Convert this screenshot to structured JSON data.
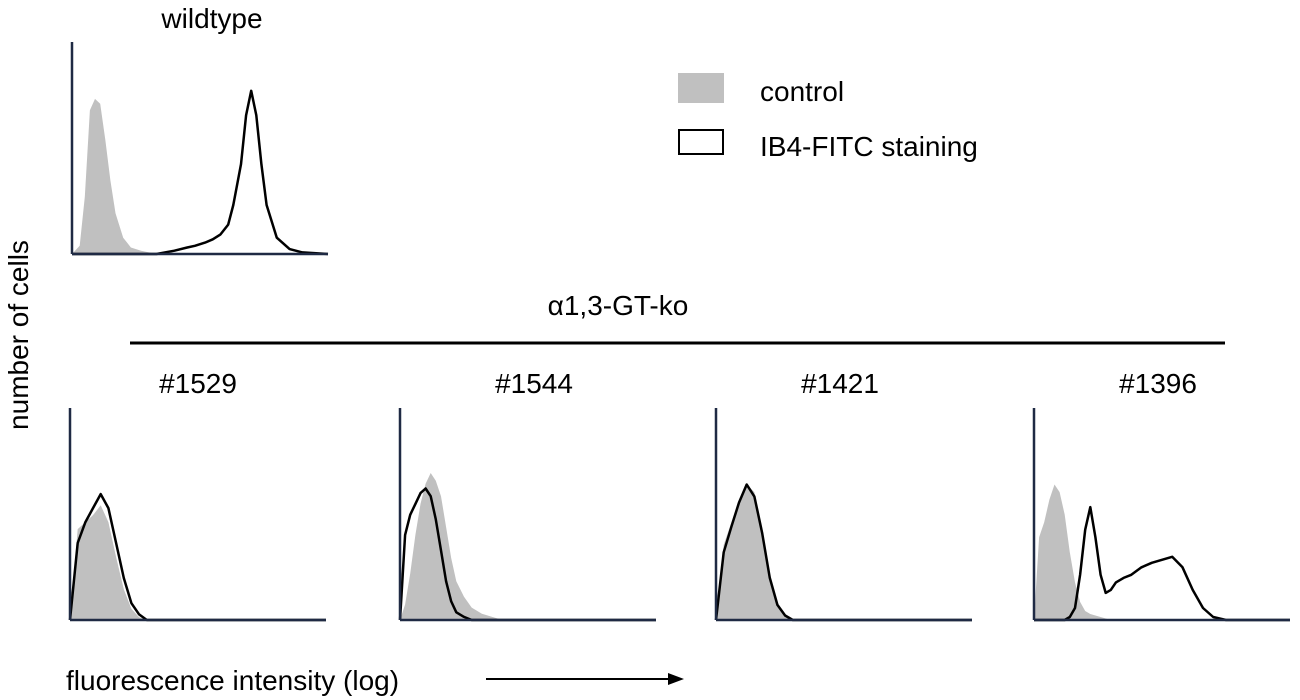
{
  "figure": {
    "ylabel": "number of cells",
    "xlabel": "fluorescence intensity (log)",
    "group_label": "α1,3-GT-ko",
    "legend": {
      "control_label": "control",
      "stain_label": "IB4-FITC staining"
    },
    "colors": {
      "control_fill": "#c0c0c0",
      "stain_line": "#000000",
      "axis": "#1f2a44"
    }
  },
  "chart_data": [
    {
      "type": "area",
      "title": "wildtype",
      "x_scale": "log",
      "grid": false,
      "legend": "top-right",
      "x": [
        0.0,
        0.03,
        0.05,
        0.07,
        0.09,
        0.11,
        0.13,
        0.15,
        0.17,
        0.2,
        0.23,
        0.27,
        0.33,
        0.4,
        0.45,
        0.48,
        0.52,
        0.55,
        0.58,
        0.61,
        0.63,
        0.66,
        0.68,
        0.7,
        0.72,
        0.74,
        0.76,
        0.8,
        0.85,
        0.9,
        1.0
      ],
      "series": [
        {
          "name": "control",
          "values": [
            0.0,
            0.05,
            0.35,
            0.88,
            0.95,
            0.92,
            0.7,
            0.45,
            0.25,
            0.1,
            0.04,
            0.02,
            0.0,
            0.0,
            0.0,
            0.0,
            0.0,
            0.0,
            0.0,
            0.0,
            0.0,
            0.0,
            0.0,
            0.0,
            0.0,
            0.0,
            0.0,
            0.0,
            0.0,
            0.0,
            0.0
          ]
        },
        {
          "name": "IB4-FITC staining",
          "values": [
            0.0,
            0.0,
            0.0,
            0.0,
            0.0,
            0.0,
            0.0,
            0.0,
            0.0,
            0.0,
            0.0,
            0.0,
            0.0,
            0.02,
            0.04,
            0.05,
            0.07,
            0.09,
            0.12,
            0.18,
            0.3,
            0.55,
            0.85,
            1.0,
            0.85,
            0.55,
            0.3,
            0.1,
            0.03,
            0.01,
            0.0
          ]
        }
      ]
    },
    {
      "type": "area",
      "title": "#1529",
      "x_scale": "log",
      "grid": false,
      "x": [
        0.0,
        0.03,
        0.06,
        0.09,
        0.12,
        0.15,
        0.18,
        0.21,
        0.24,
        0.27,
        0.3,
        0.35,
        0.4,
        0.5,
        0.7,
        1.0
      ],
      "series": [
        {
          "name": "control",
          "values": [
            0.0,
            0.65,
            0.7,
            0.75,
            0.82,
            0.7,
            0.45,
            0.22,
            0.08,
            0.02,
            0.0,
            0.0,
            0.0,
            0.0,
            0.0,
            0.0
          ]
        },
        {
          "name": "IB4-FITC staining",
          "values": [
            0.0,
            0.55,
            0.7,
            0.8,
            0.9,
            0.8,
            0.55,
            0.3,
            0.12,
            0.04,
            0.0,
            0.0,
            0.0,
            0.0,
            0.0,
            0.0
          ]
        }
      ]
    },
    {
      "type": "area",
      "title": "#1544",
      "x_scale": "log",
      "grid": false,
      "x": [
        0.0,
        0.02,
        0.04,
        0.06,
        0.08,
        0.1,
        0.12,
        0.14,
        0.16,
        0.18,
        0.2,
        0.22,
        0.25,
        0.28,
        0.32,
        0.36,
        0.4,
        0.5,
        0.7,
        1.0
      ],
      "series": [
        {
          "name": "control",
          "values": [
            0.0,
            0.1,
            0.3,
            0.55,
            0.75,
            0.88,
            0.95,
            0.9,
            0.8,
            0.6,
            0.4,
            0.25,
            0.15,
            0.08,
            0.04,
            0.02,
            0.0,
            0.0,
            0.0,
            0.0
          ]
        },
        {
          "name": "IB4-FITC staining",
          "values": [
            0.0,
            0.55,
            0.68,
            0.75,
            0.82,
            0.85,
            0.8,
            0.65,
            0.45,
            0.25,
            0.12,
            0.05,
            0.02,
            0.0,
            0.0,
            0.0,
            0.0,
            0.0,
            0.0,
            0.0
          ]
        }
      ]
    },
    {
      "type": "area",
      "title": "#1421",
      "x_scale": "log",
      "grid": false,
      "x": [
        0.0,
        0.03,
        0.06,
        0.09,
        0.12,
        0.15,
        0.18,
        0.21,
        0.24,
        0.27,
        0.3,
        0.35,
        0.4,
        0.5,
        0.7,
        1.0
      ],
      "series": [
        {
          "name": "control",
          "values": [
            0.0,
            0.5,
            0.65,
            0.8,
            0.9,
            0.85,
            0.6,
            0.3,
            0.1,
            0.03,
            0.0,
            0.0,
            0.0,
            0.0,
            0.0,
            0.0
          ]
        },
        {
          "name": "IB4-FITC staining",
          "values": [
            0.0,
            0.45,
            0.62,
            0.78,
            0.9,
            0.82,
            0.58,
            0.28,
            0.1,
            0.03,
            0.0,
            0.0,
            0.0,
            0.0,
            0.0,
            0.0
          ]
        }
      ]
    },
    {
      "type": "area",
      "title": "#1396",
      "x_scale": "log",
      "grid": false,
      "x": [
        0.0,
        0.02,
        0.04,
        0.06,
        0.08,
        0.1,
        0.12,
        0.14,
        0.16,
        0.18,
        0.2,
        0.22,
        0.24,
        0.26,
        0.28,
        0.3,
        0.32,
        0.35,
        0.38,
        0.42,
        0.46,
        0.5,
        0.54,
        0.58,
        0.62,
        0.66,
        0.7,
        0.75,
        0.8,
        1.0
      ],
      "series": [
        {
          "name": "control",
          "values": [
            0.0,
            0.55,
            0.65,
            0.8,
            0.9,
            0.85,
            0.7,
            0.45,
            0.25,
            0.12,
            0.06,
            0.04,
            0.03,
            0.02,
            0.01,
            0.0,
            0.0,
            0.0,
            0.0,
            0.0,
            0.0,
            0.0,
            0.0,
            0.0,
            0.0,
            0.0,
            0.0,
            0.0,
            0.0,
            0.0
          ]
        },
        {
          "name": "IB4-FITC staining",
          "values": [
            0.0,
            0.0,
            0.0,
            0.0,
            0.0,
            0.0,
            0.0,
            0.02,
            0.08,
            0.3,
            0.6,
            0.75,
            0.55,
            0.3,
            0.18,
            0.2,
            0.25,
            0.28,
            0.3,
            0.35,
            0.38,
            0.4,
            0.42,
            0.35,
            0.2,
            0.08,
            0.02,
            0.0,
            0.0,
            0.0
          ]
        }
      ]
    }
  ]
}
